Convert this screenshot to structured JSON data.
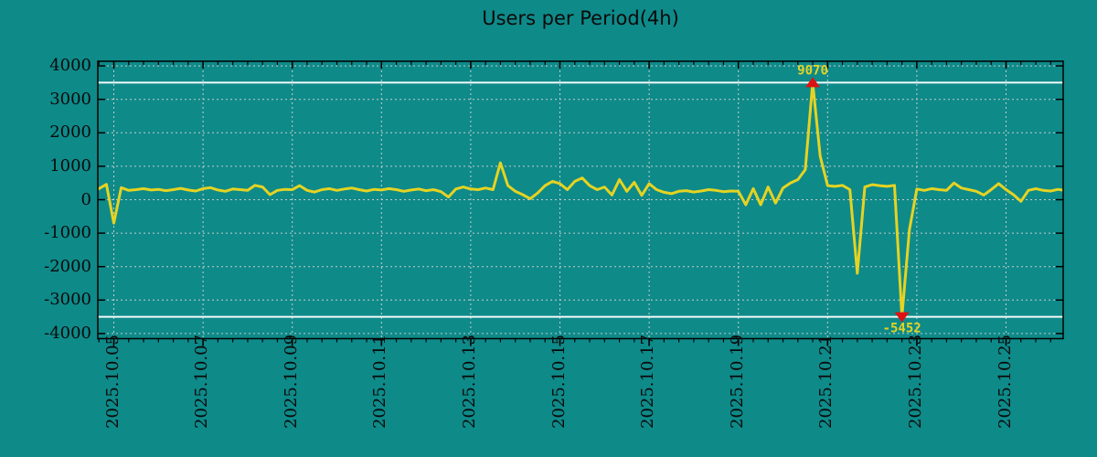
{
  "window": {
    "title": "Users per Period(4h)"
  },
  "chart_data": {
    "type": "line",
    "title": "Users per Period(4h)",
    "series_name": "users-per-4h-period",
    "x_start": "2025.10.04 16:00",
    "interval_hours": 4,
    "values": [
      330,
      460,
      -700,
      360,
      280,
      300,
      330,
      290,
      310,
      270,
      300,
      340,
      290,
      260,
      330,
      360,
      290,
      250,
      320,
      300,
      280,
      430,
      380,
      150,
      280,
      310,
      300,
      420,
      280,
      230,
      300,
      330,
      280,
      320,
      350,
      300,
      260,
      310,
      290,
      330,
      300,
      250,
      290,
      320,
      270,
      300,
      240,
      80,
      320,
      380,
      320,
      300,
      350,
      300,
      1100,
      420,
      250,
      150,
      30,
      200,
      420,
      550,
      480,
      300,
      550,
      650,
      420,
      300,
      380,
      140,
      600,
      250,
      520,
      130,
      480,
      300,
      220,
      180,
      250,
      270,
      230,
      260,
      300,
      280,
      240,
      260,
      250,
      -150,
      330,
      -150,
      380,
      -100,
      350,
      500,
      600,
      900,
      9070,
      1300,
      420,
      400,
      430,
      300,
      -2200,
      380,
      450,
      420,
      400,
      430,
      -5452,
      -900,
      320,
      280,
      330,
      300,
      280,
      500,
      350,
      300,
      250,
      140,
      300,
      480,
      300,
      150,
      -50,
      280,
      330,
      280,
      260,
      310,
      270
    ],
    "x_tick_labels": [
      "2025.10.05",
      "2025.10.07",
      "2025.10.09",
      "2025.10.11",
      "2025.10.13",
      "2025.10.15",
      "2025.10.17",
      "2025.10.19",
      "2025.10.21",
      "2025.10.23",
      "2025.10.25"
    ],
    "x_tick_interval_days": 2,
    "x_minor_tick_hours": 8,
    "y_ticks": [
      4000,
      3000,
      2000,
      1000,
      0,
      -1000,
      -2000,
      -3000,
      -4000
    ],
    "y_major_step": 1000,
    "clip_limits": [
      3500,
      -3500
    ],
    "grid": true,
    "legend": "none",
    "annotations": [
      {
        "kind": "max",
        "label": "9070",
        "value": 9070
      },
      {
        "kind": "min",
        "label": "-5452",
        "value": -5452
      }
    ],
    "colors": {
      "background": "#0e8a89",
      "line": "#e5d322",
      "grid": "#c5cdcc",
      "limit_line": "#f2fbf9",
      "marker": "#dd1111",
      "text": "#0a0a0a",
      "annotation_text": "#e5d322",
      "axis": "#000000"
    }
  }
}
